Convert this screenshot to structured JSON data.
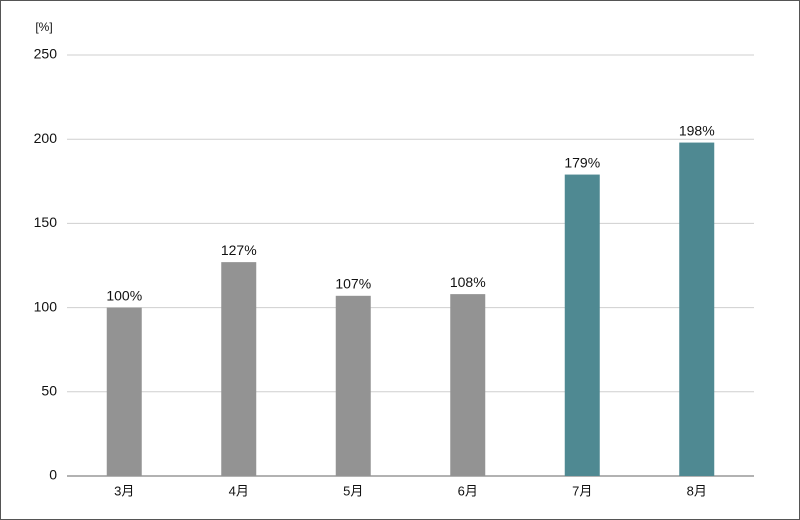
{
  "chart_data": {
    "type": "bar",
    "y_unit_label": "[%]",
    "categories": [
      "3月",
      "4月",
      "5月",
      "6月",
      "7月",
      "8月"
    ],
    "values": [
      100,
      127,
      107,
      108,
      179,
      198
    ],
    "value_labels": [
      "100%",
      "127%",
      "107%",
      "108%",
      "179%",
      "198%"
    ],
    "colors": [
      "#939393",
      "#939393",
      "#939393",
      "#939393",
      "#4f8992",
      "#4f8992"
    ],
    "ylim": [
      0,
      250
    ],
    "yticks": [
      0,
      50,
      100,
      150,
      200,
      250
    ],
    "grid": true
  }
}
